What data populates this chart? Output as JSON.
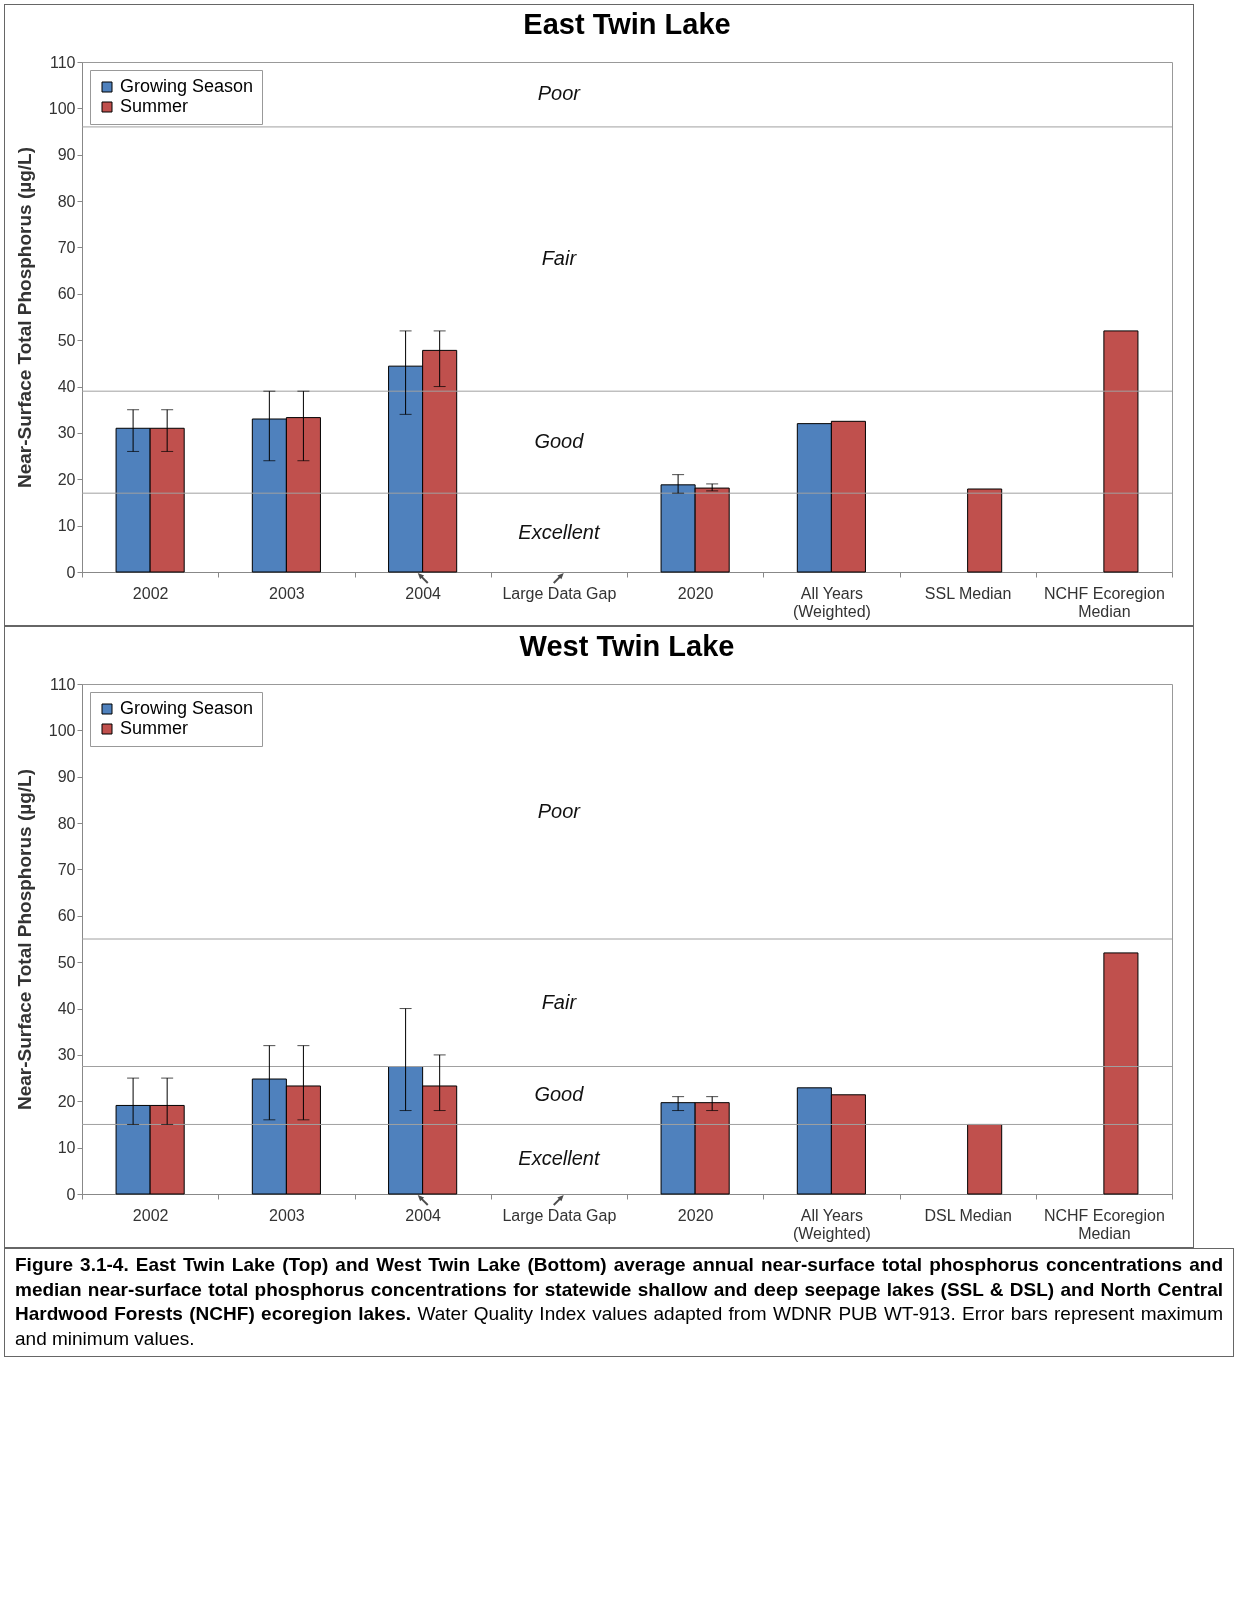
{
  "chart_data": [
    {
      "type": "bar",
      "title": "East Twin Lake",
      "ylabel": "Near-Surface Total Phosphorus (µg/L)",
      "categories": [
        "2002",
        "2003",
        "2004",
        "Large Data Gap",
        "2020",
        "All Years\n(Weighted)",
        "SSL Median",
        "NCHF Ecoregion\nMedian"
      ],
      "series": [
        {
          "name": "Growing Season",
          "color": "#4f81bd",
          "values": [
            31,
            33,
            44.4,
            null,
            18.8,
            32,
            null,
            null
          ],
          "errors": [
            [
              26,
              35
            ],
            [
              24,
              39
            ],
            [
              34,
              52
            ],
            null,
            [
              17,
              21
            ],
            null,
            null,
            null
          ]
        },
        {
          "name": "Summer",
          "color": "#c0504d",
          "values": [
            31,
            33.3,
            47.8,
            null,
            18.1,
            32.5,
            17.9,
            52
          ],
          "errors": [
            [
              26,
              35
            ],
            [
              24,
              39
            ],
            [
              40,
              52
            ],
            null,
            [
              17.5,
              19
            ],
            null,
            null,
            null
          ]
        }
      ],
      "ylim": [
        0,
        110
      ],
      "yticks": [
        0,
        10,
        20,
        30,
        40,
        50,
        60,
        70,
        80,
        90,
        100,
        110
      ],
      "legend": "top left",
      "ref_lines": [
        {
          "axis": "y",
          "value": 17,
          "color": "#a0a0a0"
        },
        {
          "axis": "y",
          "value": 39,
          "color": "#a0a0a0"
        },
        {
          "axis": "y",
          "value": 96,
          "color": "#a0a0a0"
        }
      ],
      "annotations": [
        "Poor",
        "Fair",
        "Good",
        "Excellent"
      ]
    },
    {
      "type": "bar",
      "title": "West Twin Lake",
      "ylabel": "Near-Surface Total Phosphorus (µg/L)",
      "categories": [
        "2002",
        "2003",
        "2004",
        "Large Data Gap",
        "2020",
        "All Years\n(Weighted)",
        "DSL Median",
        "NCHF Ecoregion\nMedian"
      ],
      "series": [
        {
          "name": "Growing Season",
          "color": "#4f81bd",
          "values": [
            19.1,
            24.8,
            27.5,
            null,
            19.7,
            22.9,
            null,
            null
          ],
          "errors": [
            [
              15,
              25
            ],
            [
              16,
              32
            ],
            [
              18,
              40
            ],
            null,
            [
              18,
              21
            ],
            null,
            null,
            null
          ]
        },
        {
          "name": "Summer",
          "color": "#c0504d",
          "values": [
            19.1,
            23.3,
            23.3,
            null,
            19.7,
            21.4,
            15,
            52
          ],
          "errors": [
            [
              15,
              25
            ],
            [
              16,
              32
            ],
            [
              18,
              30
            ],
            null,
            [
              18,
              21
            ],
            null,
            null,
            null
          ]
        }
      ],
      "ylim": [
        0,
        110
      ],
      "yticks": [
        0,
        10,
        20,
        30,
        40,
        50,
        60,
        70,
        80,
        90,
        100,
        110
      ],
      "legend": "top left",
      "ref_lines": [
        {
          "axis": "y",
          "value": 15,
          "color": "#a0a0a0"
        },
        {
          "axis": "y",
          "value": 27.5,
          "color": "#a0a0a0"
        },
        {
          "axis": "y",
          "value": 55,
          "color": "#a0a0a0"
        }
      ],
      "annotations": [
        "Poor",
        "Fair",
        "Good",
        "Excellent",
        "Figure 3.1-4.  East Twin Lake (Top) and West Twin Lake (Bottom) average annual near-surface total phosphorus concentrations and median near-surface total phosphorus concentrations for statewide shallow and deep seepage lakes (SSL & DSL) and North Central Hardwood Forests (NCHF) ecoregion lakes.",
        "Water Quality Index values adapted from WDNR PUB WT-913.  Error bars represent maximum and minimum values."
      ]
    }
  ]
}
